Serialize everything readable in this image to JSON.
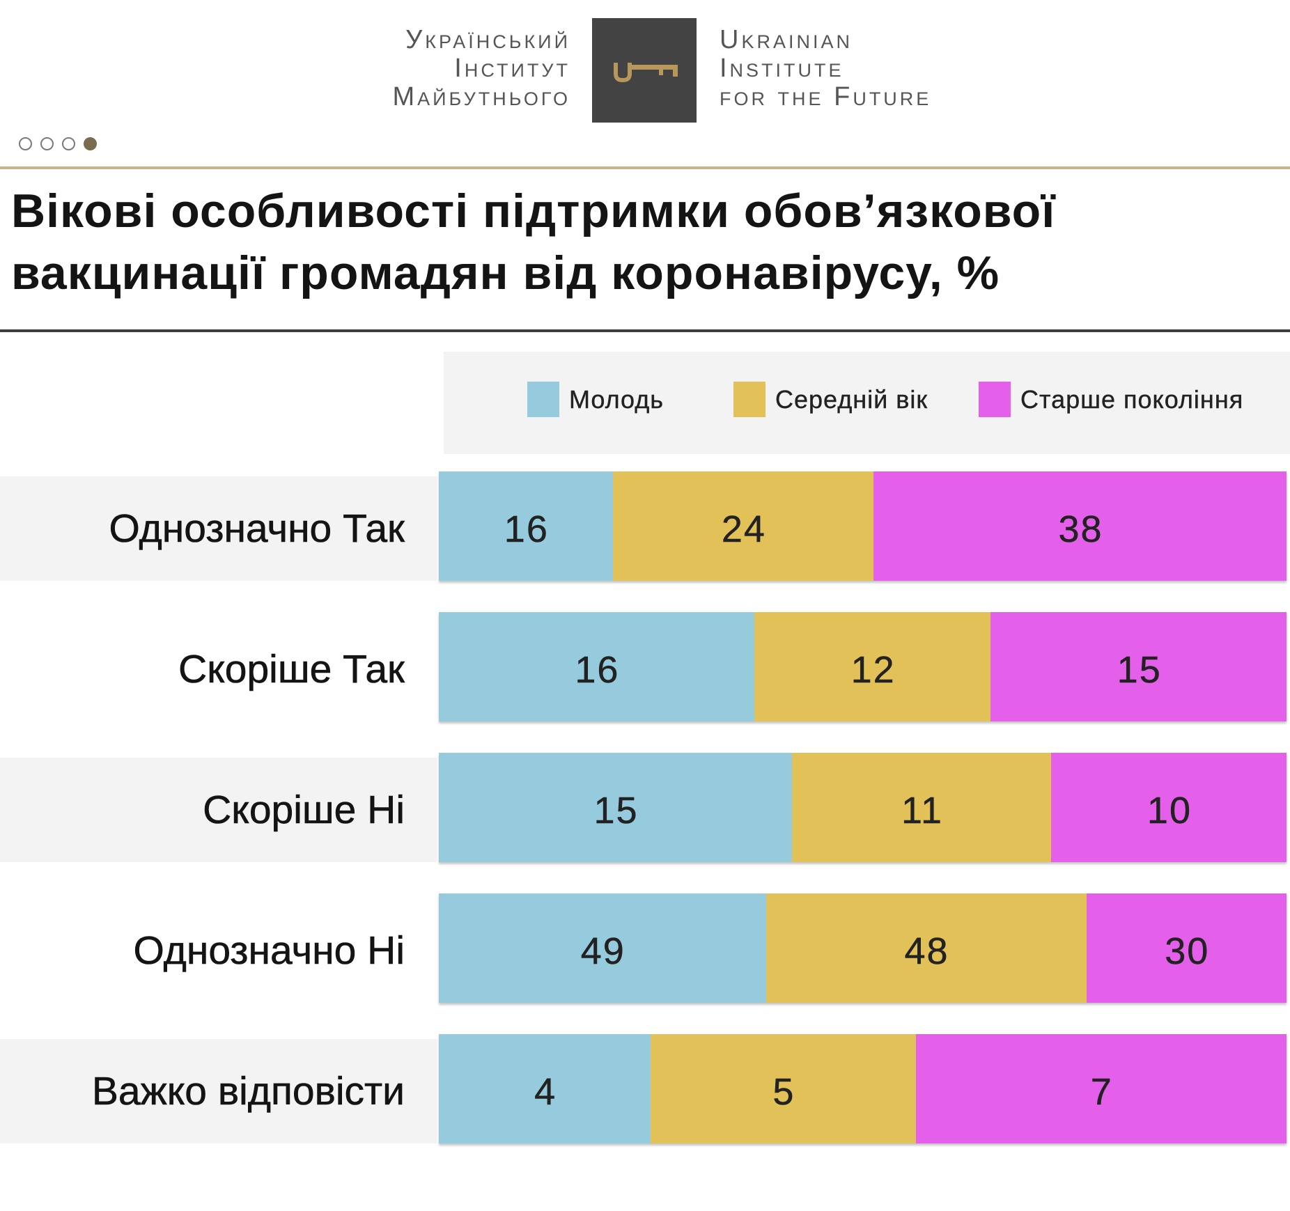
{
  "header": {
    "logo_uk": [
      "Український",
      "Інститут",
      "Майбутнього"
    ],
    "logo_en": [
      "Ukrainian",
      "Institute",
      "for the Future"
    ],
    "logo_icon": "key-icon",
    "pager": {
      "total": 4,
      "active": 4
    }
  },
  "theme": {
    "logo_bg": "#434343",
    "logo_key": "#b8975a",
    "accent_rule": "#c9b48a",
    "dark_rule": "#3d3d3d",
    "pager_active": "#7b6b4f"
  },
  "chart_data": {
    "type": "bar",
    "stacked": true,
    "normalized_per_category": true,
    "title": [
      "Вікові особливості підтримки обов’язкової",
      "вакцинації громадян від коронавірусу, %"
    ],
    "categories": [
      "Однозначно Так",
      "Скоріше Так",
      "Скоріше Ні",
      "Однозначно Ні",
      "Важко відповісти"
    ],
    "series": [
      {
        "name": "Молодь",
        "color": "#96cbdd",
        "values": [
          16,
          16,
          15,
          49,
          4
        ]
      },
      {
        "name": "Середній вік",
        "color": "#e2c158",
        "values": [
          24,
          12,
          11,
          48,
          5
        ]
      },
      {
        "name": "Старше покоління",
        "color": "#e560ea",
        "values": [
          38,
          15,
          10,
          30,
          7
        ]
      }
    ]
  }
}
